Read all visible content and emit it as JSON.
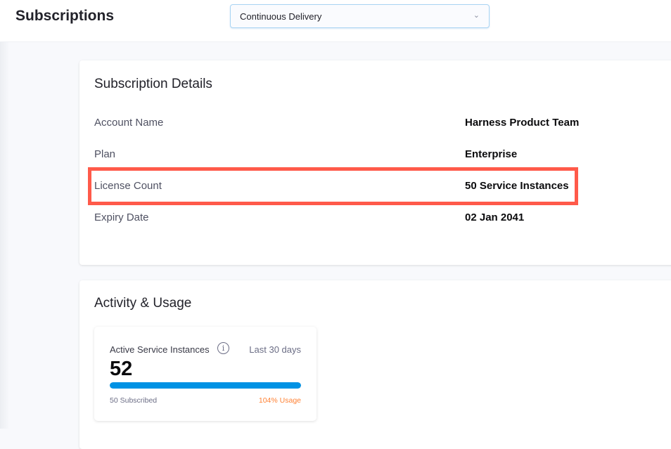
{
  "header": {
    "title": "Subscriptions",
    "module_select": {
      "value": "Continuous Delivery",
      "icon": "chevron-down-icon"
    }
  },
  "details": {
    "title": "Subscription Details",
    "rows": [
      {
        "label": "Account Name",
        "value": "Harness Product Team"
      },
      {
        "label": "Plan",
        "value": "Enterprise"
      },
      {
        "label": "License Count",
        "value": "50 Service Instances",
        "highlighted": true
      },
      {
        "label": "Expiry Date",
        "value": "02 Jan 2041"
      }
    ],
    "highlight_color": "#ff5a4a"
  },
  "activity": {
    "title": "Activity & Usage",
    "card": {
      "label": "Active Service Instances",
      "info_icon": "info-icon",
      "info_glyph": "i",
      "period": "Last 30 days",
      "count": "52",
      "usage_percent": 104,
      "subscribed": "50 Subscribed",
      "usage_text": "104% Usage",
      "bar_color": "#0092e4",
      "usage_color": "#ff8235"
    }
  }
}
